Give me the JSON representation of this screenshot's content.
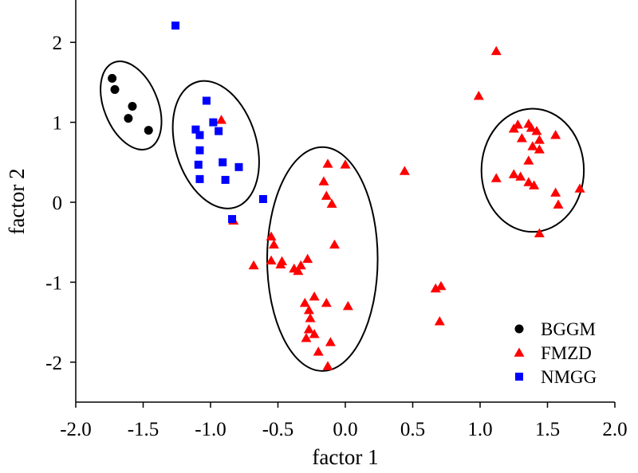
{
  "chart_data": {
    "type": "scatter",
    "xlabel": "factor 1",
    "ylabel": "factor 2",
    "xlim": [
      -2.0,
      2.0
    ],
    "ylim": [
      -2.5,
      2.5
    ],
    "xticks": [
      "-2.0",
      "-1.5",
      "-1.0",
      "-0.5",
      "0.0",
      "0.5",
      "1.0",
      "1.5",
      "2.0"
    ],
    "yticks": [
      "-2",
      "-1",
      "0",
      "1",
      "2"
    ],
    "legend_position": "bottom-right",
    "grid": false,
    "series": [
      {
        "name": "BGGM",
        "marker": "circle",
        "color": "#000000",
        "points": [
          [
            -1.73,
            1.55
          ],
          [
            -1.71,
            1.41
          ],
          [
            -1.58,
            1.2
          ],
          [
            -1.61,
            1.05
          ],
          [
            -1.46,
            0.9
          ]
        ]
      },
      {
        "name": "FMZD",
        "marker": "triangle",
        "color": "#ff0000",
        "points": [
          [
            -0.92,
            1.03
          ],
          [
            -0.83,
            -0.23
          ],
          [
            -0.55,
            -0.43
          ],
          [
            -0.53,
            -0.53
          ],
          [
            -0.68,
            -0.79
          ],
          [
            -0.55,
            -0.73
          ],
          [
            -0.47,
            -0.74
          ],
          [
            -0.48,
            -0.78
          ],
          [
            -0.38,
            -0.83
          ],
          [
            -0.35,
            -0.86
          ],
          [
            -0.33,
            -0.79
          ],
          [
            -0.28,
            -0.71
          ],
          [
            -0.13,
            0.48
          ],
          [
            -0.16,
            0.26
          ],
          [
            -0.14,
            0.08
          ],
          [
            -0.1,
            -0.02
          ],
          [
            -0.08,
            -0.53
          ],
          [
            0.0,
            0.47
          ],
          [
            -0.23,
            -1.18
          ],
          [
            -0.3,
            -1.26
          ],
          [
            -0.27,
            -1.35
          ],
          [
            -0.26,
            -1.45
          ],
          [
            -0.14,
            -1.26
          ],
          [
            -0.29,
            -1.7
          ],
          [
            -0.27,
            -1.59
          ],
          [
            -0.23,
            -1.65
          ],
          [
            -0.2,
            -1.87
          ],
          [
            -0.11,
            -1.75
          ],
          [
            -0.13,
            -2.05
          ],
          [
            0.02,
            -1.3
          ],
          [
            0.44,
            0.39
          ],
          [
            0.67,
            -1.08
          ],
          [
            0.71,
            -1.05
          ],
          [
            0.7,
            -1.49
          ],
          [
            0.99,
            1.33
          ],
          [
            1.12,
            1.89
          ],
          [
            1.25,
            0.92
          ],
          [
            1.28,
            0.97
          ],
          [
            1.36,
            0.98
          ],
          [
            1.38,
            0.93
          ],
          [
            1.42,
            0.89
          ],
          [
            1.44,
            0.78
          ],
          [
            1.31,
            0.8
          ],
          [
            1.39,
            0.7
          ],
          [
            1.44,
            0.66
          ],
          [
            1.36,
            0.52
          ],
          [
            1.56,
            0.84
          ],
          [
            1.25,
            0.35
          ],
          [
            1.3,
            0.32
          ],
          [
            1.36,
            0.25
          ],
          [
            1.12,
            0.3
          ],
          [
            1.4,
            0.21
          ],
          [
            1.56,
            0.12
          ],
          [
            1.74,
            0.17
          ],
          [
            1.58,
            -0.03
          ],
          [
            1.44,
            -0.39
          ]
        ]
      },
      {
        "name": "NMGG",
        "marker": "square",
        "color": "#0000ff",
        "points": [
          [
            -1.26,
            2.21
          ],
          [
            -1.03,
            1.27
          ],
          [
            -0.98,
            1.0
          ],
          [
            -1.11,
            0.91
          ],
          [
            -0.94,
            0.89
          ],
          [
            -1.08,
            0.84
          ],
          [
            -1.08,
            0.65
          ],
          [
            -1.09,
            0.47
          ],
          [
            -0.91,
            0.5
          ],
          [
            -0.79,
            0.44
          ],
          [
            -1.08,
            0.29
          ],
          [
            -0.89,
            0.28
          ],
          [
            -0.61,
            0.04
          ],
          [
            -0.84,
            -0.21
          ]
        ]
      }
    ],
    "ellipses": [
      {
        "cx": -1.59,
        "cy": 1.21,
        "rx": 0.2,
        "ry": 0.58,
        "rotate": -22
      },
      {
        "cx": -0.96,
        "cy": 0.72,
        "rx": 0.3,
        "ry": 0.82,
        "rotate": -17
      },
      {
        "cx": -0.17,
        "cy": -0.71,
        "rx": 0.41,
        "ry": 1.4,
        "rotate": 0
      },
      {
        "cx": 1.39,
        "cy": 0.4,
        "rx": 0.38,
        "ry": 0.77,
        "rotate": 0
      }
    ]
  }
}
